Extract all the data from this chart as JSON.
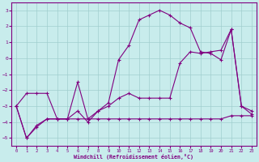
{
  "xlabel": "Windchill (Refroidissement éolien,°C)",
  "bg_color": "#c8ecec",
  "line_color": "#800080",
  "grid_color": "#a0cece",
  "xlim": [
    -0.5,
    23.5
  ],
  "ylim": [
    -5.5,
    3.5
  ],
  "yticks": [
    -5,
    -4,
    -3,
    -2,
    -1,
    0,
    1,
    2,
    3
  ],
  "xticks": [
    0,
    1,
    2,
    3,
    4,
    5,
    6,
    7,
    8,
    9,
    10,
    11,
    12,
    13,
    14,
    15,
    16,
    17,
    18,
    19,
    20,
    21,
    22,
    23
  ],
  "line1_x": [
    0,
    1,
    2,
    3,
    4,
    5,
    6,
    7,
    8,
    9,
    10,
    11,
    12,
    13,
    14,
    15,
    16,
    17,
    18,
    19,
    20,
    21,
    22,
    23
  ],
  "line1_y": [
    -3.0,
    -2.2,
    -2.2,
    -2.2,
    -3.8,
    -3.8,
    -3.8,
    -3.8,
    -3.8,
    -3.8,
    -3.8,
    -3.8,
    -3.8,
    -3.8,
    -3.8,
    -3.8,
    -3.8,
    -3.8,
    -3.8,
    -3.8,
    -3.8,
    -3.6,
    -3.6,
    -3.6
  ],
  "line2_x": [
    0,
    1,
    2,
    3,
    4,
    5,
    6,
    7,
    8,
    9,
    10,
    11,
    12,
    13,
    14,
    15,
    16,
    17,
    18,
    19,
    20,
    21,
    22,
    23
  ],
  "line2_y": [
    -3.0,
    -5.0,
    -4.2,
    -3.8,
    -3.8,
    -3.8,
    -1.5,
    -3.8,
    -3.3,
    -2.8,
    -0.1,
    0.8,
    2.4,
    2.7,
    3.0,
    2.7,
    2.2,
    1.9,
    0.4,
    0.3,
    -0.1,
    1.8,
    -3.0,
    -3.3
  ],
  "line3_x": [
    0,
    1,
    2,
    3,
    4,
    5,
    6,
    7,
    8,
    9,
    10,
    11,
    12,
    13,
    14,
    15,
    16,
    17,
    18,
    19,
    20,
    21,
    22,
    23
  ],
  "line3_y": [
    -3.0,
    -5.0,
    -4.3,
    -3.8,
    -3.8,
    -3.8,
    -3.3,
    -4.0,
    -3.3,
    -3.0,
    -2.5,
    -2.2,
    -2.5,
    -2.5,
    -2.5,
    -2.5,
    -0.3,
    0.4,
    0.3,
    0.4,
    0.5,
    1.8,
    -3.0,
    -3.5
  ]
}
